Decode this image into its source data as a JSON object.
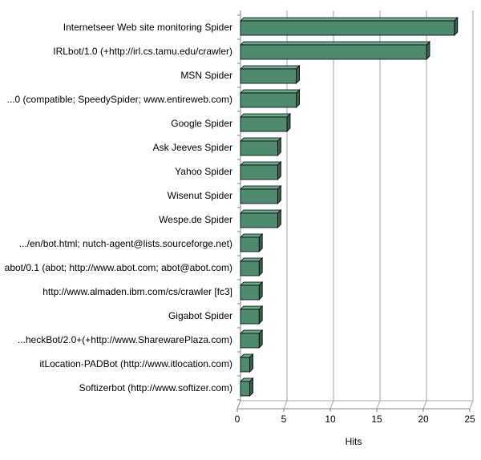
{
  "chart_data": {
    "type": "bar",
    "orientation": "horizontal",
    "categories": [
      "Internetseer Web site monitoring Spider",
      "IRLbot/1.0 (+http://irl.cs.tamu.edu/crawler)",
      "MSN Spider",
      "...0 (compatible; SpeedySpider; www.entireweb.com)",
      "Google Spider",
      "Ask Jeeves Spider",
      "Yahoo Spider",
      "Wisenut Spider",
      "Wespe.de Spider",
      ".../en/bot.html; nutch-agent@lists.sourceforge.net)",
      "abot/0.1 (abot; http://www.abot.com; abot@abot.com)",
      "http://www.almaden.ibm.com/cs/crawler   [fc3]",
      "Gigabot Spider",
      "...heckBot/2.0+(+http://www.SharewarePlaza.com)",
      "itLocation-PADBot (http://www.itlocation.com)",
      "Softizerbot (http://www.softizer.com)"
    ],
    "values": [
      23,
      20,
      6,
      6,
      5,
      4,
      4,
      4,
      4,
      2,
      2,
      2,
      2,
      2,
      1,
      1
    ],
    "xlabel": "Hits",
    "ylabel": "",
    "xlim": [
      0,
      25
    ],
    "x_ticks": [
      0,
      5,
      10,
      15,
      20,
      25
    ],
    "grid": true,
    "legend": "none",
    "bar_style": "3d",
    "colors": {
      "bar_front": "#4f8a6e",
      "bar_top": "#6fa88b",
      "bar_side": "#346049",
      "bar_outline": "#000000",
      "grid": "#a6a6a6",
      "axis": "#808080"
    }
  }
}
